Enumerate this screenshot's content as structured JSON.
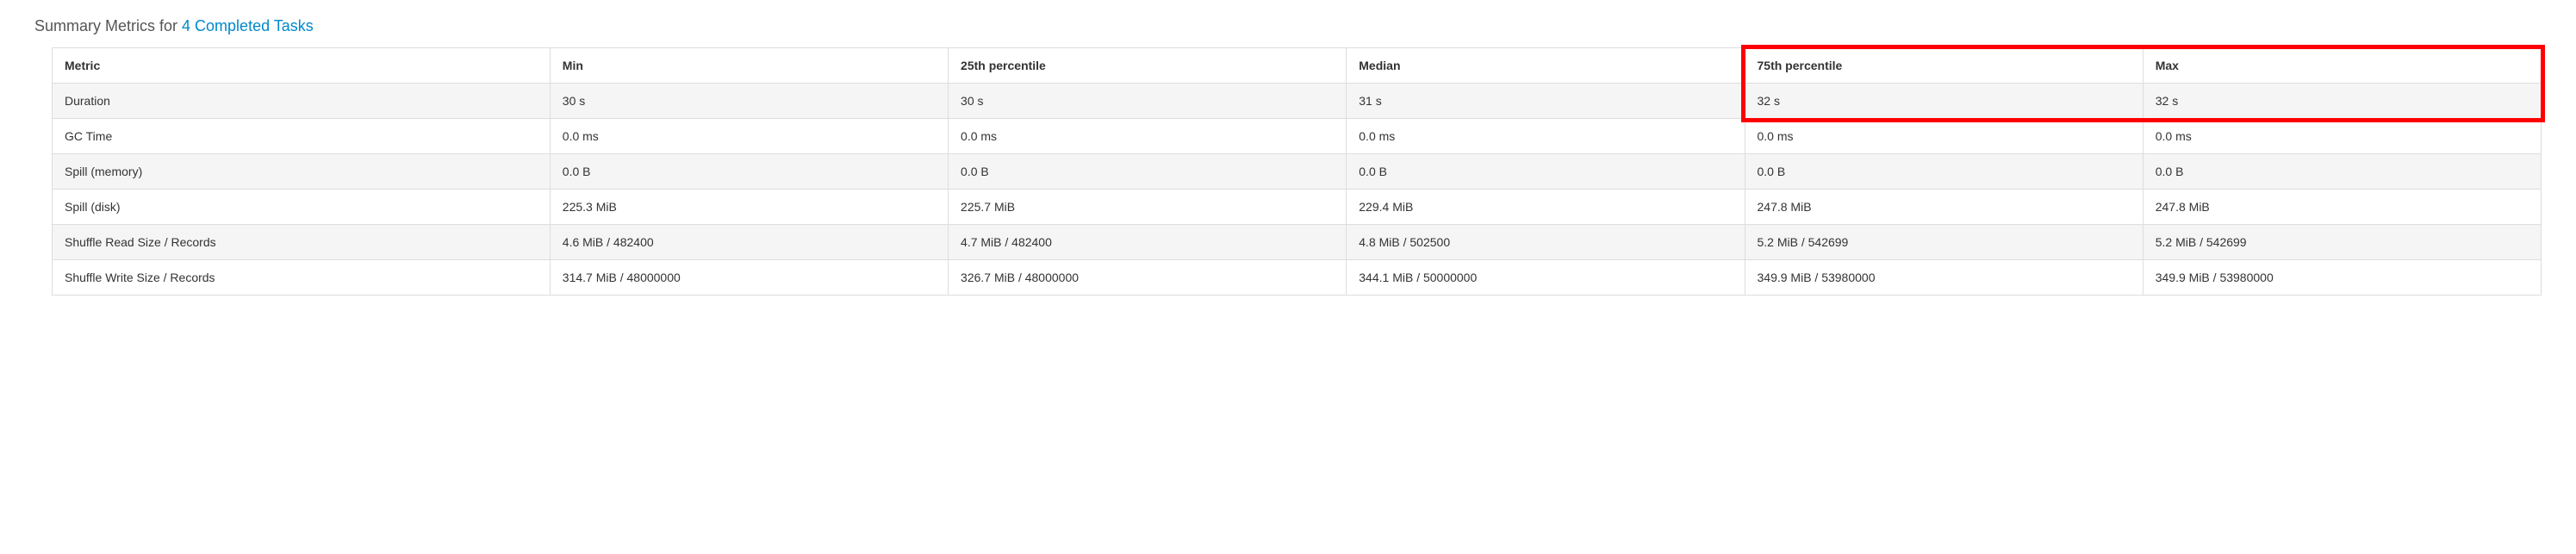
{
  "heading": {
    "prefix": "Summary Metrics for ",
    "link_text": "4 Completed Tasks"
  },
  "table": {
    "columns": [
      "Metric",
      "Min",
      "25th percentile",
      "Median",
      "75th percentile",
      "Max"
    ],
    "rows": [
      [
        "Duration",
        "30 s",
        "30 s",
        "31 s",
        "32 s",
        "32 s"
      ],
      [
        "GC Time",
        "0.0 ms",
        "0.0 ms",
        "0.0 ms",
        "0.0 ms",
        "0.0 ms"
      ],
      [
        "Spill (memory)",
        "0.0 B",
        "0.0 B",
        "0.0 B",
        "0.0 B",
        "0.0 B"
      ],
      [
        "Spill (disk)",
        "225.3 MiB",
        "225.7 MiB",
        "229.4 MiB",
        "247.8 MiB",
        "247.8 MiB"
      ],
      [
        "Shuffle Read Size / Records",
        "4.6 MiB / 482400",
        "4.7 MiB / 482400",
        "4.8 MiB / 502500",
        "5.2 MiB / 542699",
        "5.2 MiB / 542699"
      ],
      [
        "Shuffle Write Size / Records",
        "314.7 MiB / 48000000",
        "326.7 MiB / 48000000",
        "344.1 MiB / 50000000",
        "349.9 MiB / 53980000",
        "349.9 MiB / 53980000"
      ]
    ]
  },
  "highlight": {
    "border_color": "#ff0000",
    "col_start": 4,
    "col_end": 5,
    "row_start": 0,
    "row_end": 1
  }
}
